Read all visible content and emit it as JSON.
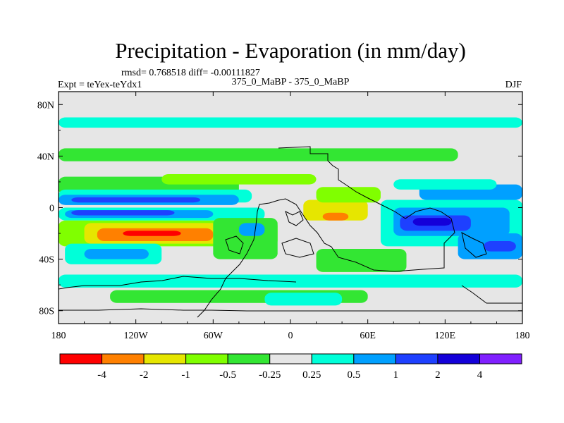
{
  "chart_data": {
    "type": "heatmap",
    "title": "Precipitation - Evaporation (in mm/day)",
    "stats_text": "rmsd= 0.768518 diff= -0.00111827",
    "left_label": "Expt = teYex-teYdx1",
    "center_label": "375_0_MaBP - 375_0_MaBP",
    "right_label": "DJF",
    "x_ticks": [
      "180",
      "120W",
      "60W",
      "0",
      "60E",
      "120E",
      "180"
    ],
    "x_tick_values": [
      -180,
      -120,
      -60,
      0,
      60,
      120,
      180
    ],
    "y_ticks": [
      "80N",
      "40N",
      "0",
      "40S",
      "80S"
    ],
    "y_tick_values": [
      80,
      40,
      0,
      -40,
      -80
    ],
    "xlim": [
      -180,
      180
    ],
    "ylim": [
      -90,
      90
    ],
    "colorbar": {
      "levels": [
        "-4",
        "-2",
        "-1",
        "-0.5",
        "-0.25",
        "0.25",
        "0.5",
        "1",
        "2",
        "4"
      ],
      "colors": [
        "#ff0000",
        "#ff8000",
        "#e6e600",
        "#80ff00",
        "#33e633",
        "#e6e6e6",
        "#00ffd9",
        "#00a0ff",
        "#1e40ff",
        "#1400d9",
        "#8020ff"
      ]
    },
    "regions": [
      {
        "name": "band-70N",
        "lon": [
          -180,
          180
        ],
        "lat": [
          62,
          70
        ],
        "color": "#00ffd9"
      },
      {
        "name": "band-55N-green",
        "lon": [
          -180,
          130
        ],
        "lat": [
          36,
          46
        ],
        "color": "#33e633"
      },
      {
        "name": "band-n-pacific-green",
        "lon": [
          -180,
          -40
        ],
        "lat": [
          10,
          24
        ],
        "color": "#33e633"
      },
      {
        "name": "band-n-pacific-cyan",
        "lon": [
          -180,
          -30
        ],
        "lat": [
          4,
          14
        ],
        "color": "#00ffd9"
      },
      {
        "name": "band-n-pacific-blue",
        "lon": [
          -180,
          -40
        ],
        "lat": [
          2,
          10
        ],
        "color": "#00a0ff"
      },
      {
        "name": "band-n-pacific-dblue",
        "lon": [
          -170,
          -70
        ],
        "lat": [
          4,
          8
        ],
        "color": "#1e40ff"
      },
      {
        "name": "band-eq-green",
        "lon": [
          -100,
          20
        ],
        "lat": [
          18,
          26
        ],
        "color": "#80ff00"
      },
      {
        "name": "s-pacific-cyan",
        "lon": [
          -180,
          -20
        ],
        "lat": [
          -10,
          0
        ],
        "color": "#00ffd9"
      },
      {
        "name": "s-pacific-blue",
        "lon": [
          -175,
          -60
        ],
        "lat": [
          -8,
          -2
        ],
        "color": "#00a0ff"
      },
      {
        "name": "s-pacific-dblue",
        "lon": [
          -170,
          -90
        ],
        "lat": [
          -6,
          -2
        ],
        "color": "#1e40ff"
      },
      {
        "name": "s-pacific-green",
        "lon": [
          -180,
          -10
        ],
        "lat": [
          -30,
          -10
        ],
        "color": "#80ff00"
      },
      {
        "name": "s-pacific-yellow",
        "lon": [
          -160,
          -40
        ],
        "lat": [
          -28,
          -12
        ],
        "color": "#e6e600"
      },
      {
        "name": "s-pacific-orange",
        "lon": [
          -150,
          -60
        ],
        "lat": [
          -26,
          -16
        ],
        "color": "#ff8000"
      },
      {
        "name": "s-pacific-red",
        "lon": [
          -130,
          -85
        ],
        "lat": [
          -22,
          -18
        ],
        "color": "#ff0000"
      },
      {
        "name": "s-pacific-cyan-lower",
        "lon": [
          -175,
          -100
        ],
        "lat": [
          -44,
          -28
        ],
        "color": "#00ffd9"
      },
      {
        "name": "s-pacific-blue-lower",
        "lon": [
          -160,
          -110
        ],
        "lat": [
          -40,
          -32
        ],
        "color": "#00a0ff"
      },
      {
        "name": "s-atlantic-green",
        "lon": [
          -60,
          -10
        ],
        "lat": [
          -40,
          -8
        ],
        "color": "#33e633"
      },
      {
        "name": "s-atlantic-blue",
        "lon": [
          -40,
          -20
        ],
        "lat": [
          -22,
          -12
        ],
        "color": "#00a0ff"
      },
      {
        "name": "africa-yellow",
        "lon": [
          10,
          60
        ],
        "lat": [
          -10,
          6
        ],
        "color": "#e6e600"
      },
      {
        "name": "africa-green",
        "lon": [
          20,
          70
        ],
        "lat": [
          4,
          16
        ],
        "color": "#80ff00"
      },
      {
        "name": "africa-orange",
        "lon": [
          25,
          45
        ],
        "lat": [
          -10,
          -4
        ],
        "color": "#ff8000"
      },
      {
        "name": "indian-cyan",
        "lon": [
          70,
          180
        ],
        "lat": [
          -30,
          6
        ],
        "color": "#00ffd9"
      },
      {
        "name": "indian-blue",
        "lon": [
          80,
          170
        ],
        "lat": [
          -22,
          0
        ],
        "color": "#00a0ff"
      },
      {
        "name": "indian-dblue",
        "lon": [
          85,
          140
        ],
        "lat": [
          -18,
          -6
        ],
        "color": "#1e40ff"
      },
      {
        "name": "indian-navy",
        "lon": [
          95,
          125
        ],
        "lat": [
          -14,
          -8
        ],
        "color": "#1400d9"
      },
      {
        "name": "asia-blue",
        "lon": [
          100,
          180
        ],
        "lat": [
          6,
          18
        ],
        "color": "#00a0ff"
      },
      {
        "name": "asia-cyan",
        "lon": [
          80,
          160
        ],
        "lat": [
          14,
          22
        ],
        "color": "#00ffd9"
      },
      {
        "name": "s-indian-blue",
        "lon": [
          130,
          180
        ],
        "lat": [
          -40,
          -20
        ],
        "color": "#00a0ff"
      },
      {
        "name": "s-indian-dblue",
        "lon": [
          150,
          175
        ],
        "lat": [
          -34,
          -26
        ],
        "color": "#1e40ff"
      },
      {
        "name": "s-ocean-cyan",
        "lon": [
          -180,
          180
        ],
        "lat": [
          -62,
          -52
        ],
        "color": "#00ffd9"
      },
      {
        "name": "s-ocean-green",
        "lon": [
          -140,
          60
        ],
        "lat": [
          -74,
          -64
        ],
        "color": "#33e633"
      },
      {
        "name": "s-ocean-cyan-2",
        "lon": [
          -20,
          40
        ],
        "lat": [
          -76,
          -66
        ],
        "color": "#00ffd9"
      },
      {
        "name": "s-mid-green",
        "lon": [
          20,
          90
        ],
        "lat": [
          -50,
          -32
        ],
        "color": "#33e633"
      }
    ]
  }
}
